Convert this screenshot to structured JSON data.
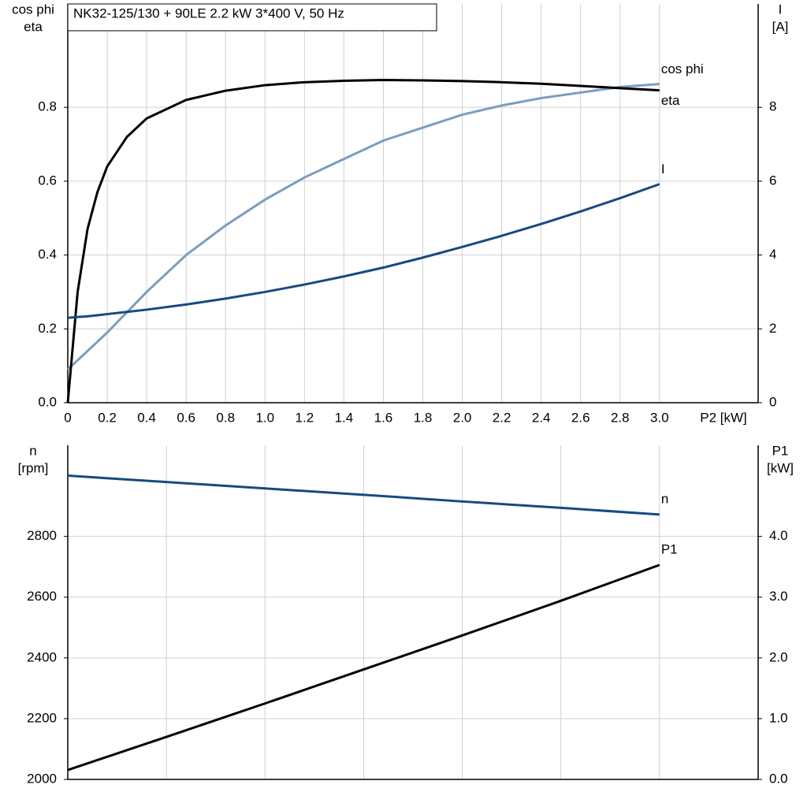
{
  "chart_data": [
    {
      "type": "line",
      "title": "NK32-125/130 + 90LE   2.2 kW   3*400 V, 50 Hz",
      "x": [
        0,
        0.05,
        0.1,
        0.15,
        0.2,
        0.3,
        0.4,
        0.6,
        0.8,
        1.0,
        1.2,
        1.4,
        1.6,
        1.8,
        2.0,
        2.2,
        2.4,
        2.6,
        2.8,
        3.0
      ],
      "xlim": [
        0,
        3.5
      ],
      "xticks": [
        0,
        0.2,
        0.4,
        0.6,
        0.8,
        {
          "value": 1,
          "label": "1.0"
        },
        1.2,
        1.4,
        1.6,
        1.8,
        {
          "value": 2,
          "label": "2.0"
        },
        2.2,
        2.4,
        2.6,
        2.8,
        {
          "value": 3,
          "label": "3.0"
        }
      ],
      "xlabel": "P2 [kW]",
      "ylim": [
        0,
        1.08
      ],
      "yticks": [
        {
          "value": 0,
          "label": "0.0"
        },
        0.2,
        0.4,
        0.6,
        0.8
      ],
      "ylabel": [
        "cos phi",
        "eta"
      ],
      "y2lim": [
        0,
        10.8
      ],
      "y2ticks": [
        0,
        2,
        4,
        6,
        8
      ],
      "y2label": [
        "I",
        "[A]"
      ],
      "grid": true,
      "series": [
        {
          "name": "cos phi",
          "color": "#7b9dbf",
          "values": [
            0.09,
            0.115,
            0.14,
            0.165,
            0.19,
            0.245,
            0.3,
            0.4,
            0.48,
            0.55,
            0.61,
            0.66,
            0.71,
            0.745,
            0.78,
            0.805,
            0.825,
            0.84,
            0.855,
            0.863
          ]
        },
        {
          "name": "eta",
          "color": "#000000",
          "values": [
            0,
            0.3,
            0.47,
            0.57,
            0.64,
            0.72,
            0.77,
            0.82,
            0.845,
            0.86,
            0.868,
            0.872,
            0.874,
            0.873,
            0.871,
            0.868,
            0.864,
            0.858,
            0.852,
            0.846
          ]
        },
        {
          "name": "I",
          "color": "#174a7e",
          "axis": "y2",
          "values": [
            2.3,
            2.32,
            2.34,
            2.37,
            2.4,
            2.46,
            2.52,
            2.66,
            2.82,
            3.0,
            3.2,
            3.42,
            3.66,
            3.93,
            4.22,
            4.52,
            4.84,
            5.18,
            5.54,
            5.92
          ]
        }
      ]
    },
    {
      "type": "line",
      "x": [
        0,
        0.5,
        1,
        1.5,
        2,
        2.5,
        3
      ],
      "xlim": [
        0,
        3.5
      ],
      "xticks": [
        0.5,
        1,
        1.5,
        2,
        2.5,
        3,
        3.5
      ],
      "ylim": [
        2000,
        3100
      ],
      "yticks": [
        2000,
        2200,
        2400,
        2600,
        2800
      ],
      "ylabel": [
        "n",
        "[rpm]"
      ],
      "y2lim": [
        0,
        5.5
      ],
      "y2ticks": [
        {
          "value": 0,
          "label": "0.0"
        },
        {
          "value": 1,
          "label": "1.0"
        },
        {
          "value": 2,
          "label": "2.0"
        },
        {
          "value": 3,
          "label": "3.0"
        },
        {
          "value": 4,
          "label": "4.0"
        }
      ],
      "y2label": [
        "P1",
        "[kW]"
      ],
      "grid": true,
      "series": [
        {
          "name": "n",
          "color": "#174a7e",
          "values": [
            3000,
            2979,
            2958,
            2937,
            2915,
            2894,
            2872
          ]
        },
        {
          "name": "P1",
          "color": "#000000",
          "axis": "y2",
          "values": [
            0.155,
            0.7,
            1.25,
            1.81,
            2.37,
            2.94,
            3.53
          ]
        }
      ]
    }
  ]
}
